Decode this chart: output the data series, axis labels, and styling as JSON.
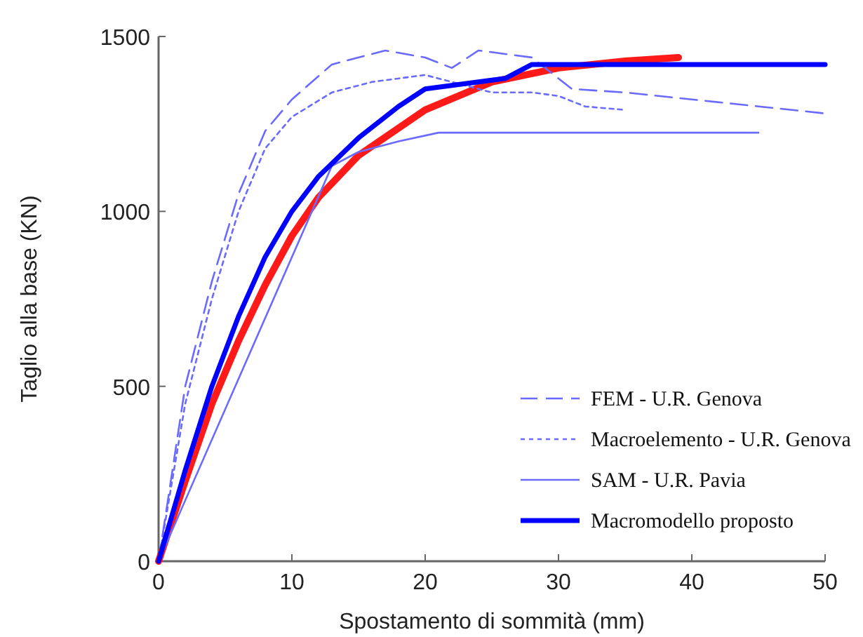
{
  "chart_data": {
    "type": "line",
    "xlabel": "Spostamento di sommità (mm)",
    "ylabel": "Taglio alla base (KN)",
    "xlim": [
      0,
      50
    ],
    "xticks": [
      0,
      10,
      20,
      30,
      40,
      50
    ],
    "ylim": [
      0,
      1500
    ],
    "yticks": [
      0,
      500,
      1000,
      1500
    ],
    "grid": false,
    "legend": "bottom right",
    "marker": "none",
    "series": [
      {
        "color": "#ff1a1a",
        "line_style": "solid",
        "x": [
          0,
          2,
          4,
          6,
          8,
          10,
          12,
          15,
          20,
          25,
          30,
          35,
          39
        ],
        "values": [
          0,
          230,
          450,
          630,
          790,
          930,
          1040,
          1160,
          1290,
          1370,
          1410,
          1430,
          1440
        ]
      },
      {
        "name": "FEM - U.R. Genova",
        "color": "#6a6aff",
        "line_style": "dashed",
        "x": [
          0,
          2,
          4,
          6,
          8,
          10,
          13,
          17,
          20,
          22,
          24,
          28,
          31,
          35,
          40,
          45,
          50
        ],
        "values": [
          0,
          500,
          800,
          1050,
          1230,
          1320,
          1420,
          1460,
          1440,
          1410,
          1460,
          1440,
          1350,
          1340,
          1320,
          1300,
          1280
        ]
      },
      {
        "name": "Macroelemento - U.R. Genova",
        "color": "#6a6aff",
        "line_style": "dotted",
        "x": [
          0,
          2,
          4,
          6,
          8,
          10,
          13,
          16,
          20,
          22,
          25,
          28,
          30,
          32,
          35
        ],
        "values": [
          0,
          450,
          750,
          1000,
          1180,
          1270,
          1340,
          1370,
          1390,
          1370,
          1340,
          1340,
          1330,
          1300,
          1290
        ]
      },
      {
        "name": "SAM - U.R. Pavia",
        "color": "#6a6aff",
        "line_style": "solid",
        "x": [
          0,
          13,
          15,
          18,
          21,
          45
        ],
        "values": [
          0,
          1130,
          1170,
          1200,
          1225,
          1225
        ]
      },
      {
        "name": "Macromodello proposto",
        "color": "#0000ff",
        "line_style": "solid",
        "x": [
          0,
          2,
          4,
          6,
          8,
          10,
          12,
          15,
          18,
          20,
          22,
          26,
          28,
          50
        ],
        "values": [
          0,
          260,
          500,
          700,
          870,
          1000,
          1100,
          1210,
          1300,
          1350,
          1360,
          1380,
          1420,
          1420
        ]
      }
    ]
  }
}
